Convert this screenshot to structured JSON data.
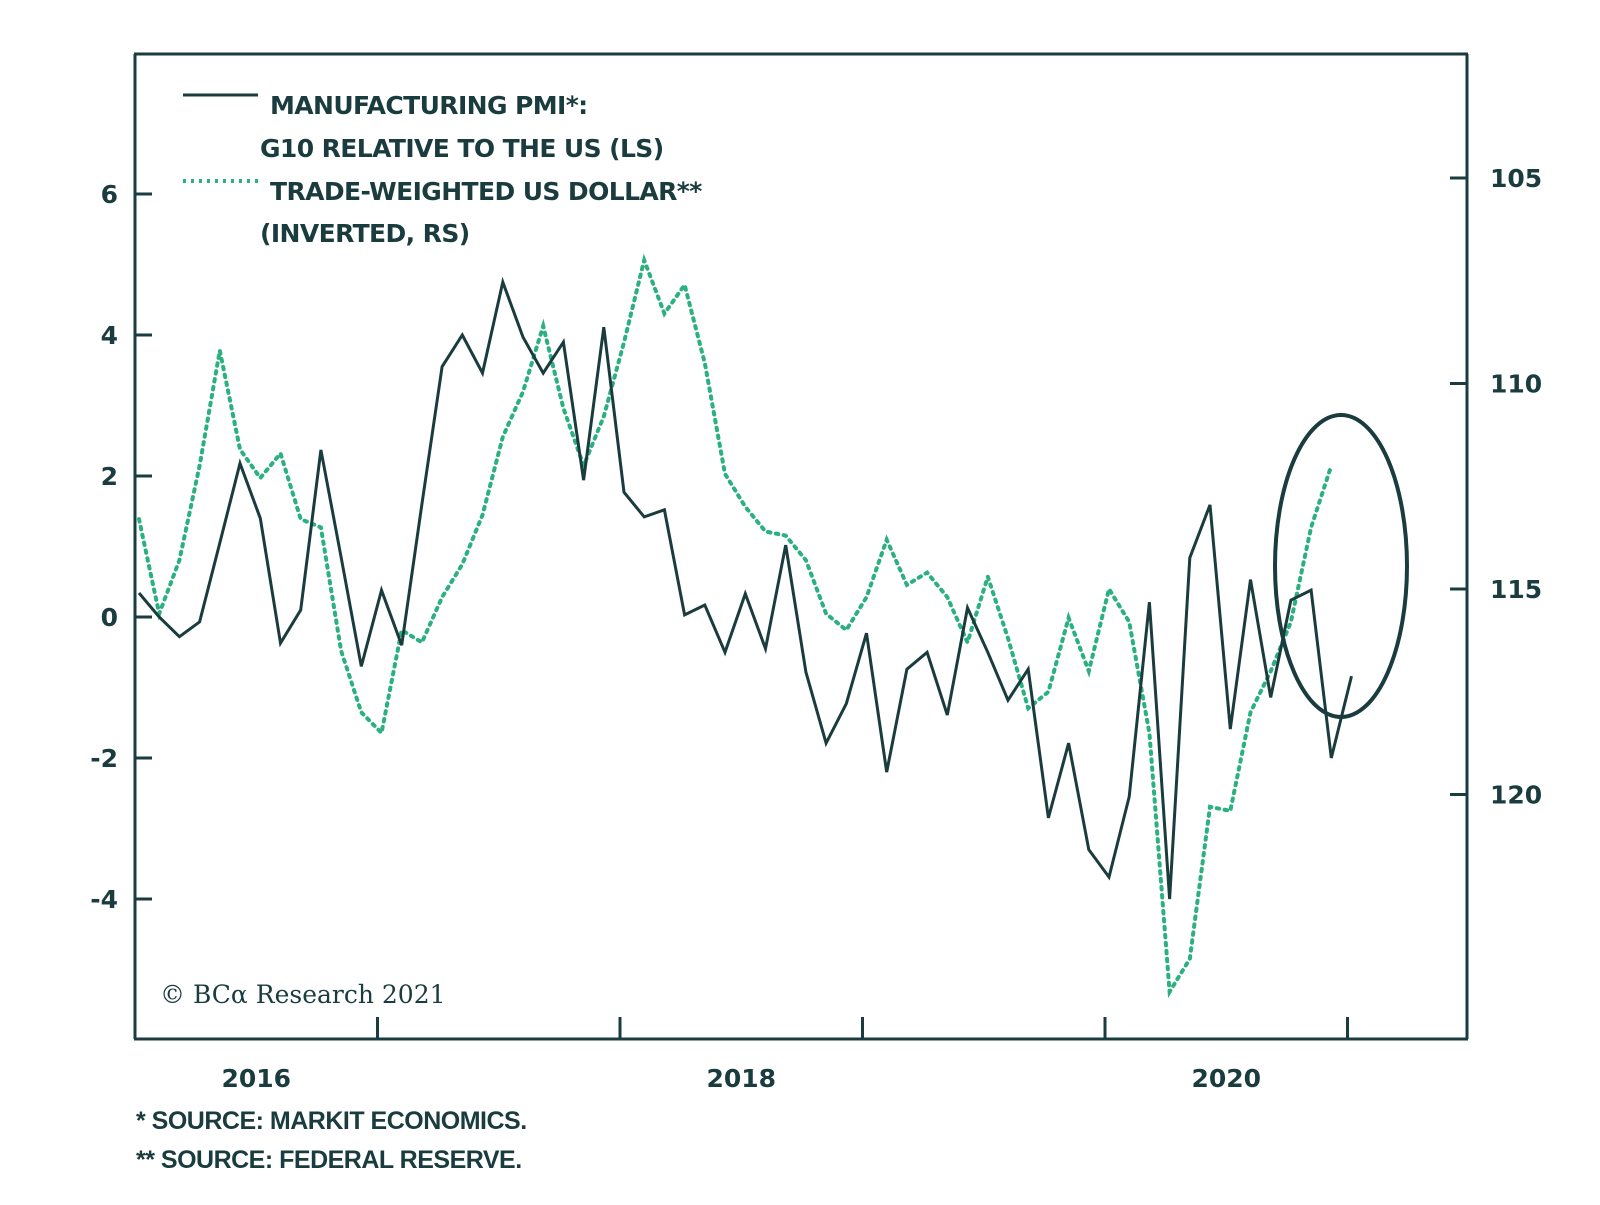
{
  "chart_data": {
    "type": "line",
    "title": "",
    "legend": {
      "placement": "top-left",
      "entries": [
        {
          "lines": [
            "MANUFACTURING PMI*:",
            "G10 RELATIVE TO THE US (LS)"
          ],
          "style": "solid",
          "axis": "left"
        },
        {
          "lines": [
            "TRADE-WEIGHTED US DOLLAR**",
            "(INVERTED, RS)"
          ],
          "style": "dotted",
          "axis": "right"
        }
      ]
    },
    "x_axis": {
      "start": "2016-01",
      "end": "2021-06",
      "tick_years": [
        2017,
        2018,
        2019,
        2020,
        2021
      ],
      "labels": [
        {
          "text": "2016",
          "center_year": 2016.5
        },
        {
          "text": "2018",
          "center_year": 2018.5
        },
        {
          "text": "2020",
          "center_year": 2020.5
        }
      ]
    },
    "y_left": {
      "label": "",
      "range": [
        -5.4,
        8.5
      ],
      "ticks": [
        -4,
        -2,
        0,
        2,
        4,
        6
      ],
      "tick_labels": [
        "-4",
        "-2",
        "0",
        "2",
        "4",
        "6"
      ]
    },
    "y_right": {
      "label": "",
      "inverted": true,
      "range": [
        102.0,
        125.8
      ],
      "ticks": [
        105,
        110,
        115,
        120
      ],
      "tick_labels": [
        "105",
        "110",
        "115",
        "120"
      ]
    },
    "grid": false,
    "series": [
      {
        "name": "Manufacturing PMI: G10 relative to the US (LS)",
        "axis": "left",
        "color": "#1a3c3f",
        "style": "solid",
        "start": "2016-01",
        "frequency": "monthly",
        "values": [
          0.34,
          0.0,
          -0.28,
          -0.07,
          1.05,
          2.18,
          1.4,
          -0.37,
          0.1,
          2.37,
          0.85,
          -0.7,
          0.38,
          -0.4,
          1.6,
          3.55,
          4.0,
          3.46,
          4.75,
          3.97,
          3.46,
          3.9,
          1.94,
          4.11,
          1.77,
          1.42,
          1.52,
          0.03,
          0.17,
          -0.5,
          0.33,
          -0.45,
          1.02,
          -0.78,
          -1.79,
          -1.23,
          -0.23,
          -2.2,
          -0.74,
          -0.5,
          -1.39,
          0.13,
          -0.5,
          -1.18,
          -0.74,
          -2.85,
          -1.79,
          -3.3,
          -3.69,
          -2.55,
          0.21,
          -4.0,
          0.84,
          1.59,
          -1.59,
          0.53,
          -1.14,
          0.24,
          0.38,
          -2.0,
          -0.84
        ]
      },
      {
        "name": "Trade-weighted US dollar (inverted, RS)",
        "axis": "right",
        "color": "#2bb07f",
        "style": "dotted",
        "start": "2016-01",
        "frequency": "monthly",
        "values": [
          113.3,
          115.6,
          114.3,
          112.0,
          109.2,
          111.6,
          112.3,
          111.7,
          113.3,
          113.5,
          116.5,
          118.0,
          118.5,
          116.0,
          116.3,
          115.2,
          114.4,
          113.2,
          111.3,
          110.2,
          108.6,
          110.6,
          112.0,
          110.8,
          109.0,
          107.0,
          108.3,
          107.6,
          109.5,
          112.2,
          113.0,
          113.6,
          113.7,
          114.3,
          115.6,
          116.0,
          115.2,
          113.8,
          114.9,
          114.6,
          115.2,
          116.3,
          114.7,
          116.2,
          117.9,
          117.5,
          115.7,
          117.0,
          115.0,
          115.8,
          118.5,
          124.8,
          124.0,
          120.3,
          120.4,
          118.0,
          117.0,
          115.8,
          113.5,
          112.0
        ]
      }
    ],
    "annotations": [
      {
        "type": "ellipse",
        "around": "2020-10 to 2021-01",
        "description": "highlight of recent divergence"
      }
    ]
  },
  "copyright": "© BCα Research 2021",
  "footnotes": [
    "*  SOURCE: MARKIT ECONOMICS.",
    "** SOURCE: FEDERAL RESERVE."
  ]
}
